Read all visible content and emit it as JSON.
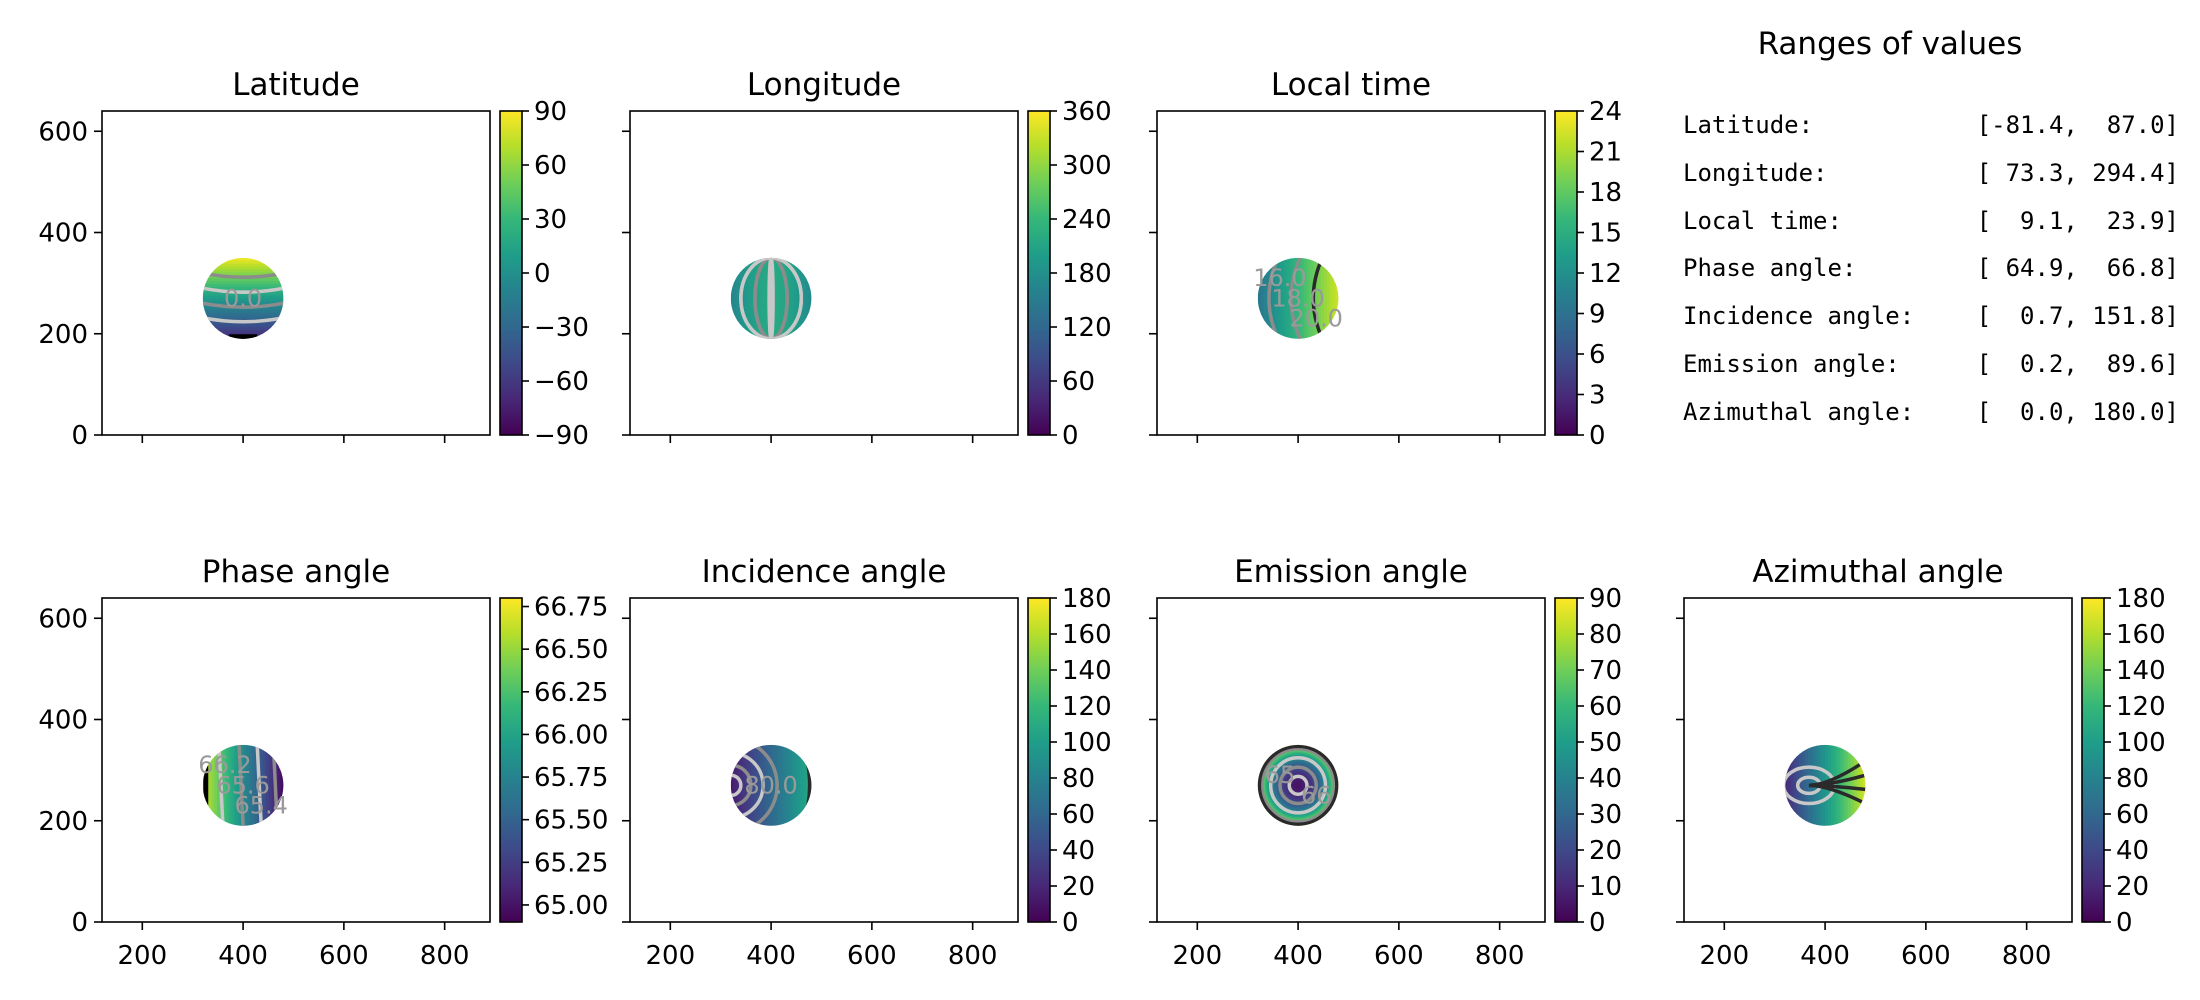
{
  "figure": {
    "colormap": "viridis",
    "contour_colors": [
      "#2a2a2a",
      "#8c8c8c",
      "#c8c8c8"
    ]
  },
  "chart_data": [
    {
      "type": "heatmap",
      "id": "lat",
      "title": "Latitude",
      "xlim": [
        120,
        890
      ],
      "ylim": [
        0,
        640
      ],
      "xticks": [
        200,
        400,
        600,
        800
      ],
      "yticks": [
        0,
        200,
        400,
        600
      ],
      "disk": {
        "center": [
          400,
          270
        ],
        "radius": 80
      },
      "field": "latitude",
      "colorbar": {
        "min": -90,
        "max": 90,
        "ticks": [
          90,
          60,
          30,
          0,
          -30,
          -60,
          -90
        ],
        "tick_labels": [
          "90",
          "60",
          "30",
          "0",
          "−30",
          "−60",
          "−90"
        ]
      },
      "contour_labels": [
        "0.0"
      ]
    },
    {
      "type": "heatmap",
      "id": "lon",
      "title": "Longitude",
      "xlim": [
        120,
        890
      ],
      "ylim": [
        0,
        640
      ],
      "xticks": [
        200,
        400,
        600,
        800
      ],
      "yticks": [
        0,
        200,
        400,
        600
      ],
      "disk": {
        "center": [
          400,
          270
        ],
        "radius": 80
      },
      "field": "longitude",
      "colorbar": {
        "min": 0,
        "max": 360,
        "ticks": [
          360,
          300,
          240,
          180,
          120,
          60,
          0
        ],
        "tick_labels": [
          "360",
          "300",
          "240",
          "180",
          "120",
          "60",
          "0"
        ]
      },
      "contour_labels": []
    },
    {
      "type": "heatmap",
      "id": "lt",
      "title": "Local time",
      "xlim": [
        120,
        890
      ],
      "ylim": [
        0,
        640
      ],
      "xticks": [
        200,
        400,
        600,
        800
      ],
      "yticks": [
        0,
        200,
        400,
        600
      ],
      "disk": {
        "center": [
          400,
          270
        ],
        "radius": 80
      },
      "field": "localtime",
      "colorbar": {
        "min": 0,
        "max": 24,
        "ticks": [
          24,
          21,
          18,
          15,
          12,
          9,
          6,
          3,
          0
        ],
        "tick_labels": [
          "24",
          "21",
          "18",
          "15",
          "12",
          "9",
          "6",
          "3",
          "0"
        ]
      },
      "contour_labels": [
        "16.0",
        "18.0",
        "20.0"
      ]
    },
    {
      "type": "heatmap",
      "id": "pha",
      "title": "Phase angle",
      "xlim": [
        120,
        890
      ],
      "ylim": [
        0,
        640
      ],
      "xticks": [
        200,
        400,
        600,
        800
      ],
      "yticks": [
        0,
        200,
        400,
        600
      ],
      "disk": {
        "center": [
          400,
          270
        ],
        "radius": 80
      },
      "field": "phase",
      "colorbar": {
        "min": 64.9,
        "max": 66.8,
        "ticks": [
          66.75,
          66.5,
          66.25,
          66.0,
          65.75,
          65.5,
          65.25,
          65.0
        ],
        "tick_labels": [
          "66.75",
          "66.50",
          "66.25",
          "66.00",
          "65.75",
          "65.50",
          "65.25",
          "65.00"
        ]
      },
      "contour_labels": [
        "66.2",
        "65.6",
        "65.4"
      ]
    },
    {
      "type": "heatmap",
      "id": "inc",
      "title": "Incidence angle",
      "xlim": [
        120,
        890
      ],
      "ylim": [
        0,
        640
      ],
      "xticks": [
        200,
        400,
        600,
        800
      ],
      "yticks": [
        0,
        200,
        400,
        600
      ],
      "disk": {
        "center": [
          400,
          270
        ],
        "radius": 80
      },
      "field": "incidence",
      "colorbar": {
        "min": 0,
        "max": 180,
        "ticks": [
          180,
          160,
          140,
          120,
          100,
          80,
          60,
          40,
          20,
          0
        ],
        "tick_labels": [
          "180",
          "160",
          "140",
          "120",
          "100",
          "80",
          "60",
          "40",
          "20",
          "0"
        ]
      },
      "contour_labels": [
        "80.0"
      ]
    },
    {
      "type": "heatmap",
      "id": "emi",
      "title": "Emission angle",
      "xlim": [
        120,
        890
      ],
      "ylim": [
        0,
        640
      ],
      "xticks": [
        200,
        400,
        600,
        800
      ],
      "yticks": [
        0,
        200,
        400,
        600
      ],
      "disk": {
        "center": [
          400,
          270
        ],
        "radius": 80
      },
      "field": "emission",
      "colorbar": {
        "min": 0,
        "max": 90,
        "ticks": [
          90,
          80,
          70,
          60,
          50,
          40,
          30,
          20,
          10,
          0
        ],
        "tick_labels": [
          "90",
          "80",
          "70",
          "60",
          "50",
          "40",
          "30",
          "20",
          "10",
          "0"
        ]
      },
      "contour_labels": [
        "65",
        "66"
      ]
    },
    {
      "type": "heatmap",
      "id": "azi",
      "title": "Azimuthal angle",
      "xlim": [
        120,
        890
      ],
      "ylim": [
        0,
        640
      ],
      "xticks": [
        200,
        400,
        600,
        800
      ],
      "yticks": [
        0,
        200,
        400,
        600
      ],
      "disk": {
        "center": [
          400,
          270
        ],
        "radius": 80
      },
      "field": "azimuth",
      "colorbar": {
        "min": 0,
        "max": 180,
        "ticks": [
          180,
          160,
          140,
          120,
          100,
          80,
          60,
          40,
          20,
          0
        ],
        "tick_labels": [
          "180",
          "160",
          "140",
          "120",
          "100",
          "80",
          "60",
          "40",
          "20",
          "0"
        ]
      },
      "contour_labels": []
    }
  ],
  "ranges": {
    "title": "Ranges of values",
    "rows": [
      {
        "label": "Latitude:",
        "value": "[-81.4,  87.0]"
      },
      {
        "label": "Longitude:",
        "value": "[ 73.3, 294.4]"
      },
      {
        "label": "Local time:",
        "value": "[  9.1,  23.9]"
      },
      {
        "label": "Phase angle:",
        "value": "[ 64.9,  66.8]"
      },
      {
        "label": "Incidence angle:",
        "value": "[  0.7, 151.8]"
      },
      {
        "label": "Emission angle:",
        "value": "[  0.2,  89.6]"
      },
      {
        "label": "Azimuthal angle:",
        "value": "[  0.0, 180.0]"
      }
    ]
  }
}
